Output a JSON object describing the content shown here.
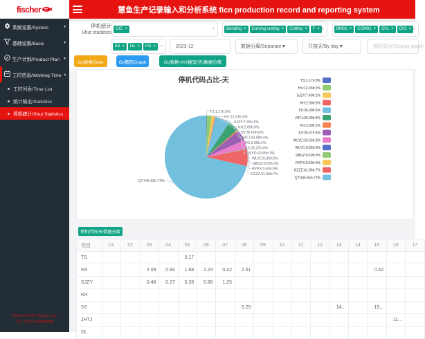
{
  "brand": {
    "name": "fischer"
  },
  "header": {
    "title": "慧鱼生产记录输入和分析系统 ficn production record and reporting system"
  },
  "sidebar": {
    "items": [
      {
        "id": "system",
        "icon": "gear-icon",
        "label": "系统设置/System",
        "state": "collapsed"
      },
      {
        "id": "basic",
        "icon": "funnel-icon",
        "label": "基础设置/Basic",
        "state": "collapsed"
      },
      {
        "id": "product-plan",
        "icon": "edit-icon",
        "label": "生产计划/Product Plan",
        "state": "collapsed"
      },
      {
        "id": "working-time",
        "icon": "calendar-icon",
        "label": "工时信息/Working Time",
        "state": "expanded"
      }
    ],
    "subitems": [
      {
        "id": "time-list",
        "label": "工时列表/Time List",
        "active": false
      },
      {
        "id": "statistics",
        "label": "统计输出/Statistics",
        "active": false
      },
      {
        "id": "shut-statistics",
        "label": "停机统计/Shut Statistics",
        "active": true
      }
    ],
    "footer": {
      "line1": "Powered By Supes Inc.",
      "line2": "Tel: 0512-63869998"
    }
  },
  "filters": {
    "label_line1": "停机统计",
    "label_line2": "Shut statistics",
    "code_tags": [
      "CIC"
    ],
    "process_tags": [
      "Bending",
      "Curving cutting",
      "Cutting",
      "F"
    ],
    "machine_tags": [
      "BM01",
      "CCM01",
      "C01",
      "C02"
    ],
    "shift_tags": [
      "5S",
      "DL",
      "FG"
    ],
    "month_value": "2023-12",
    "separate_value": "数据分离/Separate",
    "byday_value": "只按天/By day",
    "display_placeholder": "图形显示/Display graph"
  },
  "actions": {
    "go_table": "Go表格Table",
    "go_graph": "Go图形Graph",
    "go_table_hx": "Go表格+HX换型/天/数据分离",
    "code_day_separate": "停机代码/天/数据分离"
  },
  "chart_data": {
    "type": "pie",
    "title": "停机代码占比-天",
    "label_format": "{name}:{value}h:{pct}",
    "legend_position": "right",
    "series": [
      {
        "name": "TS",
        "value": 1.17,
        "pct": "0%",
        "color": "#5470c6"
      },
      {
        "name": "HX",
        "value": 12.03,
        "pct": "2%",
        "color": "#91cc75"
      },
      {
        "name": "SJZY",
        "value": 7.4,
        "pct": "1%",
        "color": "#fac858"
      },
      {
        "name": "KH",
        "value": 2.0,
        "pct": "0%",
        "color": "#ee6666"
      },
      {
        "name": "5S",
        "value": 36.0,
        "pct": "6%",
        "color": "#73c0de"
      },
      {
        "name": "JHTJ",
        "value": 26.09,
        "pct": "4%",
        "color": "#3ba272"
      },
      {
        "name": "FG",
        "value": 3.0,
        "pct": "1%",
        "color": "#fc8452"
      },
      {
        "name": "XX",
        "value": 26.37,
        "pct": "4%",
        "color": "#9a60b4"
      },
      {
        "name": "WLYD",
        "value": 20.65,
        "pct": "3%",
        "color": "#ea7ccc"
      },
      {
        "name": "WLYC",
        "value": 0.85,
        "pct": "0%",
        "color": "#5470c6"
      },
      {
        "name": "SBGZ",
        "value": 0.6,
        "pct": "0%",
        "color": "#91cc75"
      },
      {
        "name": "RYPX",
        "value": 0.5,
        "pct": "0%",
        "color": "#fac858"
      },
      {
        "name": "GZZZ",
        "value": 41.06,
        "pct": "7%",
        "color": "#ee6666"
      },
      {
        "name": "QT",
        "value": 445.65,
        "pct": "72%",
        "color": "#73c0de"
      }
    ]
  },
  "table": {
    "columns": [
      "项目",
      "01",
      "02",
      "03",
      "04",
      "05",
      "06",
      "07",
      "08",
      "09",
      "10",
      "11",
      "12",
      "13",
      "14",
      "15",
      "16",
      "17"
    ],
    "rows": [
      {
        "label": "TS",
        "values": {
          "05": "0.17"
        }
      },
      {
        "label": "HX",
        "values": {
          "03": "2.09",
          "04": "0.84",
          "05": "1.68",
          "06": "1.24",
          "07": "0.42",
          "08": "2.51",
          "15": "0.42"
        }
      },
      {
        "label": "SJZY",
        "values": {
          "03": "0.48",
          "04": "0.27",
          "05": "0.28",
          "06": "0.88",
          "07": "1.25"
        }
      },
      {
        "label": "KH",
        "values": {}
      },
      {
        "label": "5S",
        "values": {
          "08": "0.25",
          "13": "14...",
          "15": "19..."
        }
      },
      {
        "label": "JHTJ",
        "values": {
          "16": "11..."
        }
      },
      {
        "label": "DL",
        "values": {}
      }
    ]
  }
}
